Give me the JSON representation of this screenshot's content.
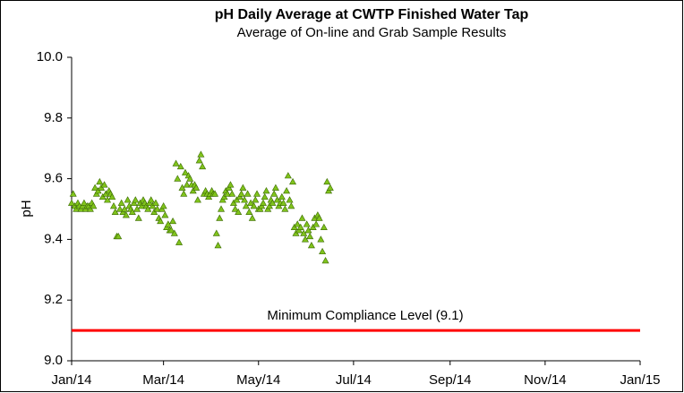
{
  "chart_data": {
    "type": "scatter",
    "title": "pH Daily Average at CWTP Finished Water Tap",
    "subtitle": "Average of On-line and Grab Sample Results",
    "y_label": "pH",
    "color": "#80c31c",
    "x": [
      0,
      1,
      2,
      3,
      4,
      5,
      6,
      7,
      8,
      9,
      10,
      11,
      12,
      13,
      14,
      15,
      16,
      17,
      18,
      19,
      20,
      21,
      22,
      23,
      24,
      25,
      26,
      27,
      28,
      29,
      30,
      31,
      32,
      33,
      34,
      35,
      36,
      37,
      38,
      39,
      40,
      41,
      42,
      43,
      44,
      45,
      46,
      47,
      48,
      49,
      50,
      51,
      52,
      53,
      54,
      55,
      56,
      57,
      58,
      59,
      60,
      61,
      62,
      63,
      64,
      65,
      66,
      67,
      68,
      69,
      70,
      71,
      72,
      73,
      74,
      75,
      76,
      77,
      78,
      79,
      80,
      81,
      82,
      83,
      84,
      85,
      86,
      87,
      88,
      89,
      90,
      91,
      92,
      93,
      94,
      95,
      96,
      97,
      98,
      99,
      100,
      101,
      102,
      103,
      104,
      105,
      106,
      107,
      108,
      109,
      110,
      111,
      112,
      113,
      114,
      115,
      116,
      117,
      118,
      119,
      120,
      121,
      122,
      123,
      124,
      125,
      126,
      127,
      128,
      129,
      130,
      131,
      132,
      133,
      134,
      135,
      136,
      137,
      138,
      139,
      140,
      141,
      142,
      143,
      144,
      145,
      146,
      147,
      148,
      149,
      150,
      151,
      152,
      153,
      154,
      155,
      156,
      157,
      158,
      159,
      160,
      161,
      162,
      163,
      164,
      165,
      166
    ],
    "values": [
      9.52,
      9.55,
      9.51,
      9.5,
      9.52,
      9.51,
      9.5,
      9.51,
      9.52,
      9.5,
      9.51,
      9.51,
      9.5,
      9.52,
      9.51,
      9.57,
      9.55,
      9.56,
      9.59,
      9.57,
      9.54,
      9.58,
      9.55,
      9.53,
      9.56,
      9.55,
      9.54,
      9.51,
      9.49,
      9.41,
      9.41,
      9.5,
      9.52,
      9.49,
      9.5,
      9.48,
      9.53,
      9.51,
      9.5,
      9.49,
      9.52,
      9.53,
      9.5,
      9.47,
      9.52,
      9.51,
      9.53,
      9.52,
      9.51,
      9.5,
      9.52,
      9.53,
      9.51,
      9.49,
      9.52,
      9.5,
      9.47,
      9.46,
      9.5,
      9.51,
      9.48,
      9.44,
      9.45,
      9.43,
      9.43,
      9.46,
      9.42,
      9.65,
      9.6,
      9.39,
      9.64,
      9.57,
      9.55,
      9.62,
      9.58,
      9.61,
      9.6,
      9.58,
      9.56,
      9.58,
      9.57,
      9.53,
      9.66,
      9.68,
      9.64,
      9.55,
      9.56,
      9.55,
      9.54,
      9.55,
      9.56,
      9.55,
      9.55,
      9.42,
      9.38,
      9.47,
      9.5,
      9.53,
      9.54,
      9.56,
      9.55,
      9.57,
      9.58,
      9.55,
      9.52,
      9.5,
      9.53,
      9.49,
      9.54,
      9.55,
      9.57,
      9.53,
      9.51,
      9.55,
      9.49,
      9.52,
      9.47,
      9.51,
      9.53,
      9.55,
      9.5,
      9.5,
      9.51,
      9.52,
      9.54,
      9.56,
      9.5,
      9.51,
      9.53,
      9.52,
      9.55,
      9.57,
      9.53,
      9.51,
      9.52,
      9.54,
      9.52,
      9.5,
      9.56,
      9.61,
      9.53,
      9.51,
      9.59,
      9.44,
      9.42,
      9.45,
      9.43,
      9.44,
      9.47,
      9.42,
      9.4,
      9.45,
      9.43,
      9.41,
      9.38,
      9.44,
      9.47,
      9.45,
      9.48,
      9.47,
      9.4,
      9.36,
      9.44,
      9.33,
      9.59,
      9.56,
      9.57
    ],
    "xlim": [
      0,
      365
    ],
    "xticks": [
      {
        "value": 0,
        "label": "Jan/14"
      },
      {
        "value": 59,
        "label": "Mar/14"
      },
      {
        "value": 120,
        "label": "May/14"
      },
      {
        "value": 181,
        "label": "Jul/14"
      },
      {
        "value": 243,
        "label": "Sep/14"
      },
      {
        "value": 304,
        "label": "Nov/14"
      },
      {
        "value": 365,
        "label": "Jan/15"
      }
    ],
    "ylim": [
      9.0,
      10.0
    ],
    "yticks": [
      {
        "value": 9.0,
        "label": "9.0"
      },
      9.2,
      9.4,
      9.6,
      9.8,
      {
        "value": 10.0,
        "label": "10.0"
      }
    ],
    "grid": false,
    "reference_line": {
      "value": 9.1,
      "label": "Minimum Compliance Level (9.1)",
      "color": "#ff0000"
    }
  }
}
